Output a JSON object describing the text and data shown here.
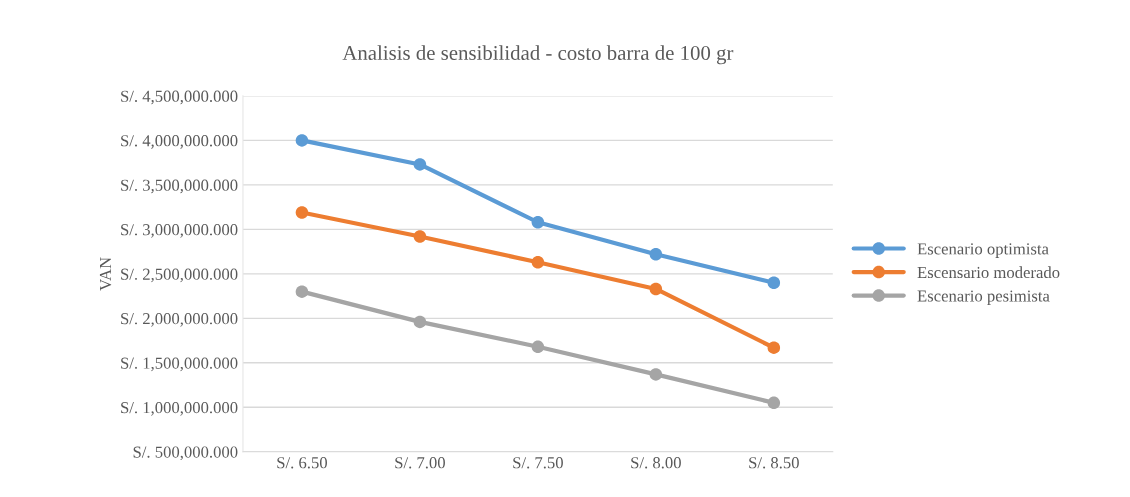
{
  "chart_data": {
    "type": "line",
    "title": "Analisis de sensibilidad - costo barra de 100 gr",
    "ylabel": "VAN",
    "categories": [
      "S/. 6.50",
      "S/. 7.00",
      "S/. 7.50",
      "S/. 8.00",
      "S/. 8.50"
    ],
    "series": [
      {
        "name": "Escenario optimista",
        "color": "#5b9bd5",
        "values": [
          4000000,
          3730000,
          3080000,
          2720000,
          2400000
        ]
      },
      {
        "name": "Escensario moderado",
        "color": "#ed7d31",
        "values": [
          3190000,
          2920000,
          2630000,
          2330000,
          1670000
        ]
      },
      {
        "name": "Escenario pesimista",
        "color": "#a5a5a5",
        "values": [
          2300000,
          1960000,
          1680000,
          1370000,
          1050000
        ]
      }
    ],
    "ylim": [
      500000,
      4500000
    ],
    "yticks": [
      {
        "value": 500000,
        "label": "S/. 500,000.000"
      },
      {
        "value": 1000000,
        "label": "S/. 1,000,000.000"
      },
      {
        "value": 1500000,
        "label": "S/. 1,500,000.000"
      },
      {
        "value": 2000000,
        "label": "S/. 2,000,000.000"
      },
      {
        "value": 2500000,
        "label": "S/. 2,500,000.000"
      },
      {
        "value": 3000000,
        "label": "S/. 3,000,000.000"
      },
      {
        "value": 3500000,
        "label": "S/. 3,500,000.000"
      },
      {
        "value": 4000000,
        "label": "S/. 4,000,000.000"
      },
      {
        "value": 4500000,
        "label": "S/. 4,500,000.000"
      }
    ],
    "grid": "y",
    "legend": "right",
    "marker": "circle",
    "line_style": "solid"
  }
}
